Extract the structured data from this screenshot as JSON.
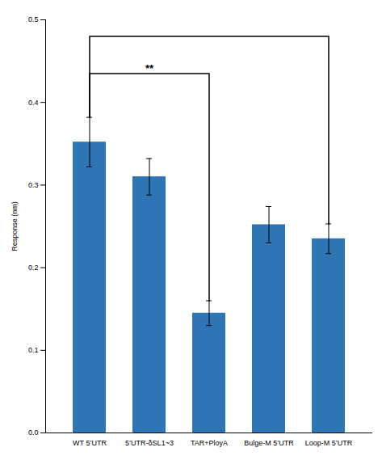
{
  "chart_data": {
    "type": "bar",
    "categories": [
      "WT 5’UTR",
      "5’UTR-δSL1~3",
      "TAR+PloyA",
      "Bulge-M 5’UTR",
      "Loop-M 5’UTR"
    ],
    "values": [
      0.352,
      0.31,
      0.145,
      0.252,
      0.235
    ],
    "errors": [
      0.03,
      0.022,
      0.015,
      0.022,
      0.018
    ],
    "color": "#2E75B6",
    "ylabel": "Response (nm)",
    "ylim": [
      0,
      0.5
    ],
    "yticks": [
      {
        "value": 0,
        "label": "0.0"
      },
      0.1,
      0.2,
      0.3,
      0.4,
      0.5
    ],
    "grid": false,
    "significance": [
      {
        "from": "WT 5’UTR",
        "to": "TAR+PloyA",
        "y": 0.435,
        "label": "**"
      },
      {
        "from": "WT 5’UTR",
        "to": "Loop-M 5’UTR",
        "y": 0.48
      }
    ]
  }
}
